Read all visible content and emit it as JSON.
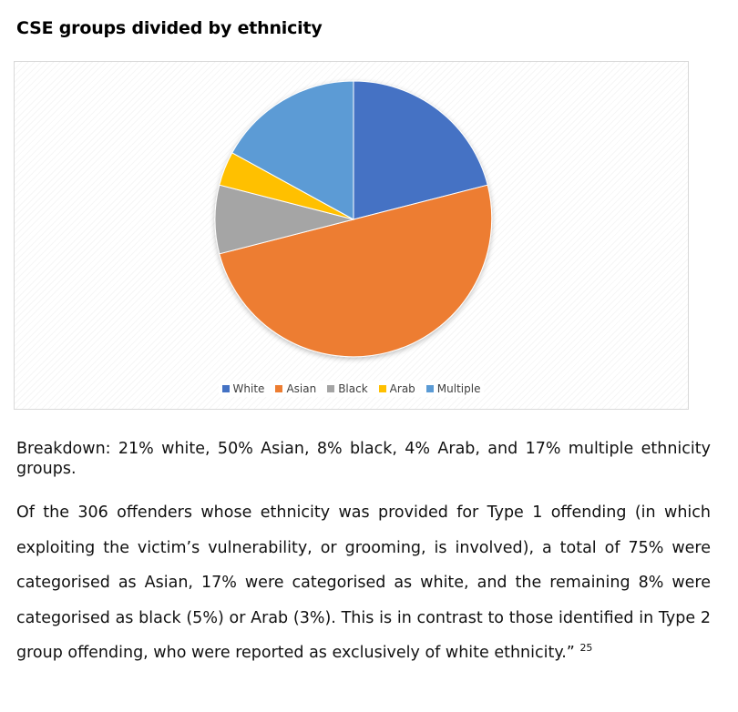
{
  "heading": "CSE groups divided by ethnicity",
  "chart_data": {
    "type": "pie",
    "title": "",
    "categories": [
      "White",
      "Asian",
      "Black",
      "Arab",
      "Multiple"
    ],
    "values": [
      21,
      50,
      8,
      4,
      17
    ],
    "colors": [
      "#4472C4",
      "#ED7D31",
      "#A5A5A5",
      "#FFC000",
      "#5B9BD5"
    ],
    "legend_position": "bottom",
    "start_angle_deg": 0,
    "direction": "clockwise"
  },
  "paragraphs": {
    "breakdown": "Breakdown: 21% white, 50% Asian, 8% black, 4% Arab, and 17% multiple ethnicity groups.",
    "quote": "Of the 306 offenders whose ethnicity was provided for Type 1 offending (in which exploiting the victim’s vulnerability, or grooming, is involved), a total of 75% were categorised as Asian, 17% were categorised as white, and the remaining 8% were categorised as black (5%) or Arab (3%). This is in contrast to those identified in Type 2 group offending, who were reported as exclusively of white ethnicity.”",
    "footnote": "25"
  }
}
